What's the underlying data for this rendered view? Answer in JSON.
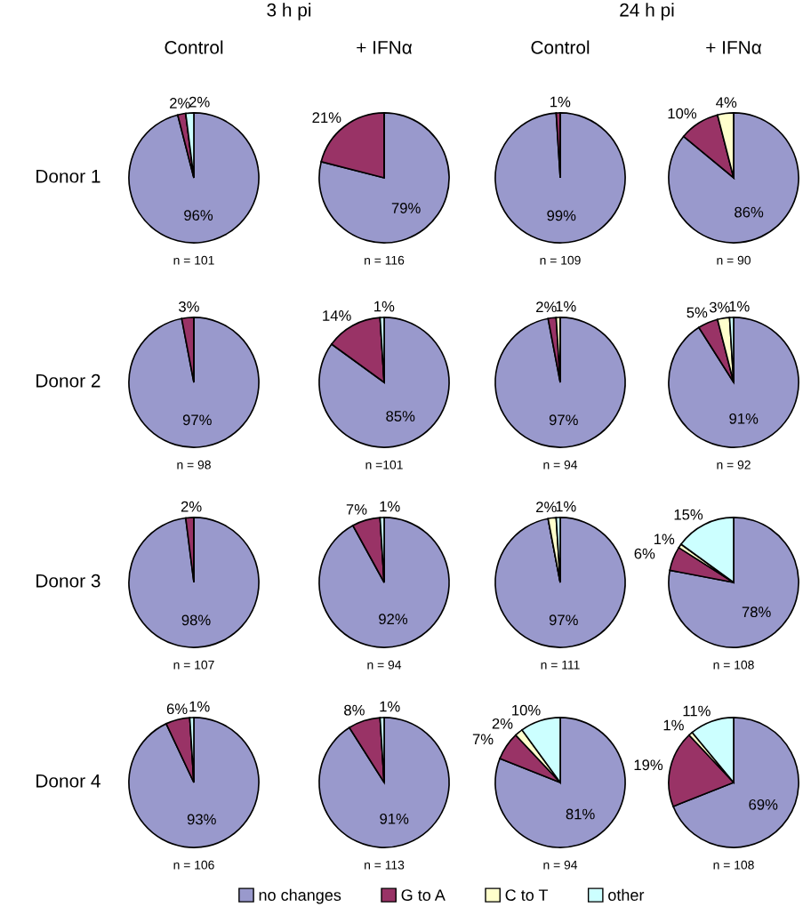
{
  "chart_data": [
    {
      "type": "pie",
      "title": "Control",
      "ylabel": "Donor 1",
      "xlabel": "n = 101",
      "annotations": [
        "3 h pi"
      ],
      "legend": "bottom",
      "categories": [
        "no changes",
        "G to A",
        "C to T",
        "other"
      ],
      "values": [
        96,
        2,
        0,
        2
      ],
      "value_labels": [
        "96%",
        "2%",
        null,
        "2%"
      ],
      "colors": [
        "#9999cc",
        "#993366",
        "#ffffcc",
        "#ccffff"
      ]
    },
    {
      "type": "pie",
      "title": "+ IFNα",
      "xlabel": "n = 116",
      "values": [
        79,
        21,
        0,
        0
      ],
      "value_labels": [
        "79%",
        "21%",
        null,
        null
      ],
      "colors": [
        "#9999cc",
        "#993366",
        "#ffffcc",
        "#ccffff"
      ]
    },
    {
      "type": "pie",
      "title": "Control",
      "xlabel": "n = 109",
      "annotations": [
        "24 h pi"
      ],
      "values": [
        99,
        1,
        0,
        0
      ],
      "value_labels": [
        "99%",
        "1%",
        null,
        null
      ],
      "colors": [
        "#9999cc",
        "#993366",
        "#ffffcc",
        "#ccffff"
      ]
    },
    {
      "type": "pie",
      "title": "+ IFNα",
      "xlabel": "n = 90",
      "values": [
        86,
        10,
        4,
        0
      ],
      "value_labels": [
        "86%",
        "10%",
        "4%",
        null
      ],
      "colors": [
        "#9999cc",
        "#993366",
        "#ffffcc",
        "#ccffff"
      ]
    },
    {
      "type": "pie",
      "ylabel": "Donor 2",
      "xlabel": "n = 98",
      "values": [
        97,
        3,
        0,
        0
      ],
      "value_labels": [
        "97%",
        "3%",
        null,
        null
      ],
      "colors": [
        "#9999cc",
        "#993366",
        "#ffffcc",
        "#ccffff"
      ]
    },
    {
      "type": "pie",
      "xlabel": "n =101",
      "values": [
        85,
        14,
        0,
        1
      ],
      "value_labels": [
        "85%",
        "14%",
        null,
        "1%"
      ],
      "colors": [
        "#9999cc",
        "#993366",
        "#ffffcc",
        "#ccffff"
      ]
    },
    {
      "type": "pie",
      "xlabel": "n = 94",
      "values": [
        97,
        2,
        1,
        0
      ],
      "value_labels": [
        "97%",
        "2%",
        "1%",
        null
      ],
      "colors": [
        "#9999cc",
        "#993366",
        "#ffffcc",
        "#ccffff"
      ]
    },
    {
      "type": "pie",
      "xlabel": "n = 92",
      "values": [
        91,
        5,
        3,
        1
      ],
      "value_labels": [
        "91%",
        "5%",
        "3%",
        "1%"
      ],
      "colors": [
        "#9999cc",
        "#993366",
        "#ffffcc",
        "#ccffff"
      ]
    },
    {
      "type": "pie",
      "ylabel": "Donor 3",
      "xlabel": "n = 107",
      "values": [
        98,
        2,
        0,
        0
      ],
      "value_labels": [
        "98%",
        "2%",
        null,
        null
      ],
      "colors": [
        "#9999cc",
        "#993366",
        "#ffffcc",
        "#ccffff"
      ]
    },
    {
      "type": "pie",
      "xlabel": "n = 94",
      "values": [
        92,
        7,
        0,
        1
      ],
      "value_labels": [
        "92%",
        "7%",
        null,
        "1%"
      ],
      "colors": [
        "#9999cc",
        "#993366",
        "#ffffcc",
        "#ccffff"
      ]
    },
    {
      "type": "pie",
      "xlabel": "n = 111",
      "values": [
        97,
        0,
        2,
        1
      ],
      "value_labels": [
        "97%",
        null,
        "2%",
        "1%"
      ],
      "colors": [
        "#9999cc",
        "#993366",
        "#ffffcc",
        "#ccffff"
      ]
    },
    {
      "type": "pie",
      "xlabel": "n = 108",
      "values": [
        78,
        6,
        1,
        15
      ],
      "value_labels": [
        "78%",
        "6%",
        "1%",
        "15%"
      ],
      "colors": [
        "#9999cc",
        "#993366",
        "#ffffcc",
        "#ccffff"
      ]
    },
    {
      "type": "pie",
      "ylabel": "Donor 4",
      "xlabel": "n = 106",
      "values": [
        93,
        6,
        0,
        1
      ],
      "value_labels": [
        "93%",
        "6%",
        null,
        "1%"
      ],
      "colors": [
        "#9999cc",
        "#993366",
        "#ffffcc",
        "#ccffff"
      ]
    },
    {
      "type": "pie",
      "xlabel": "n = 113",
      "values": [
        91,
        8,
        0,
        1
      ],
      "value_labels": [
        "91%",
        "8%",
        null,
        "1%"
      ],
      "colors": [
        "#9999cc",
        "#993366",
        "#ffffcc",
        "#ccffff"
      ]
    },
    {
      "type": "pie",
      "xlabel": "n = 94",
      "values": [
        81,
        7,
        2,
        10
      ],
      "value_labels": [
        "81%",
        "7%",
        "2%",
        "10%"
      ],
      "colors": [
        "#9999cc",
        "#993366",
        "#ffffcc",
        "#ccffff"
      ]
    },
    {
      "type": "pie",
      "xlabel": "n = 108",
      "values": [
        69,
        19,
        1,
        11
      ],
      "value_labels": [
        "69%",
        "19%",
        "1%",
        "11%"
      ],
      "colors": [
        "#9999cc",
        "#993366",
        "#ffffcc",
        "#ccffff"
      ]
    }
  ]
}
